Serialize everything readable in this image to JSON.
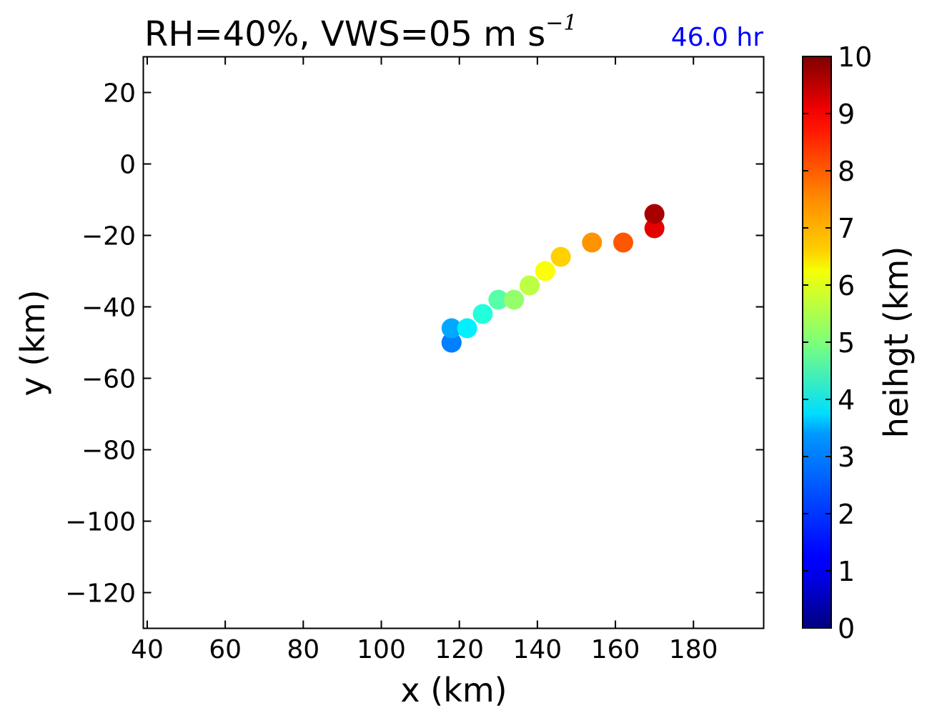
{
  "figure": {
    "title": {
      "main": "RH=40%, VWS=05 m s",
      "superscript": "−1"
    },
    "time_label": "46.0 hr",
    "time_label_color": "#0000ff",
    "xlabel": "x (km)",
    "ylabel": "y (km)",
    "colorbar_label": "heihgt (km)"
  },
  "chart_data": {
    "type": "scatter",
    "title": "RH=40%, VWS=05 m s−1",
    "annotation": "46.0 hr",
    "xlabel": "x (km)",
    "ylabel": "y (km)",
    "xlim": [
      39,
      198
    ],
    "ylim": [
      -130,
      30
    ],
    "xticks": [
      40,
      60,
      80,
      100,
      120,
      140,
      160,
      180
    ],
    "yticks": [
      -120,
      -100,
      -80,
      -60,
      -40,
      -20,
      0,
      20
    ],
    "grid": false,
    "colormap": "jet",
    "colorbar": {
      "label": "heihgt (km)",
      "range": [
        0,
        10
      ],
      "ticks": [
        0,
        1,
        2,
        3,
        4,
        5,
        6,
        7,
        8,
        9,
        10
      ]
    },
    "points": [
      {
        "x": 118,
        "y": -50,
        "height": 2.2
      },
      {
        "x": 118,
        "y": -50,
        "height": 2.5
      },
      {
        "x": 118,
        "y": -46,
        "height": 2.9
      },
      {
        "x": 122,
        "y": -46,
        "height": 3.6
      },
      {
        "x": 126,
        "y": -42,
        "height": 4.1
      },
      {
        "x": 130,
        "y": -38,
        "height": 4.6
      },
      {
        "x": 134,
        "y": -38,
        "height": 5.2
      },
      {
        "x": 138,
        "y": -34,
        "height": 5.6
      },
      {
        "x": 142,
        "y": -30,
        "height": 6.2
      },
      {
        "x": 146,
        "y": -26,
        "height": 6.7
      },
      {
        "x": 154,
        "y": -22,
        "height": 7.3
      },
      {
        "x": 162,
        "y": -22,
        "height": 7.9
      },
      {
        "x": 170,
        "y": -18,
        "height": 9.0
      },
      {
        "x": 170,
        "y": -14,
        "height": 9.6
      }
    ]
  }
}
